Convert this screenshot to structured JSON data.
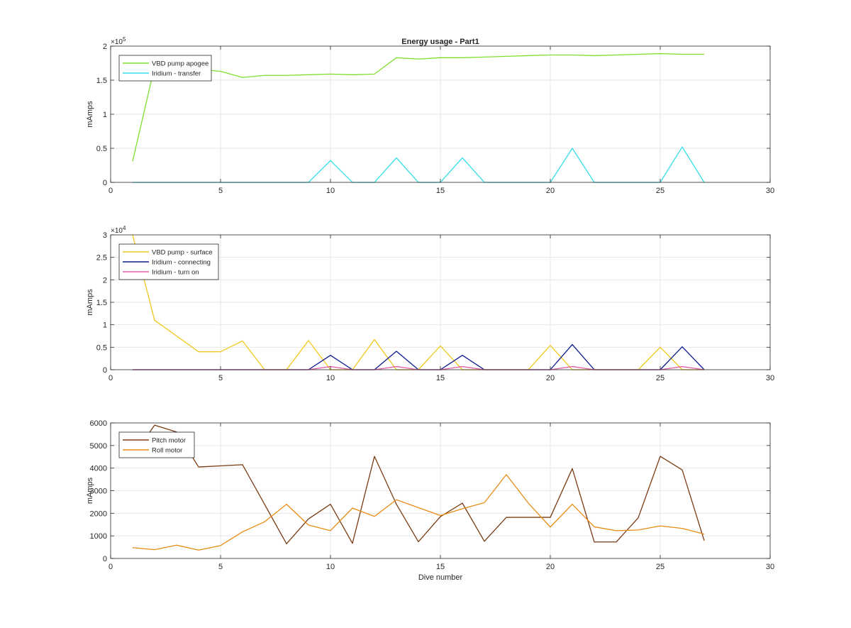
{
  "chart_data": [
    {
      "type": "line",
      "title": "Energy usage - Part1",
      "xlabel": "",
      "ylabel": "mAmps",
      "xlim": [
        0,
        30
      ],
      "ylim": [
        0,
        200000
      ],
      "x_ticks": [
        0,
        5,
        10,
        15,
        20,
        25,
        30
      ],
      "y_ticks": [
        0,
        50000,
        100000,
        150000,
        200000
      ],
      "y_tick_labels": [
        "0",
        "0.5",
        "1",
        "1.5",
        "2"
      ],
      "y_multiplier": {
        "base": "×10",
        "exponent": "5"
      },
      "grid": true,
      "legend": "top-left",
      "x": [
        1,
        2,
        3,
        4,
        5,
        6,
        7,
        8,
        9,
        10,
        11,
        12,
        13,
        14,
        15,
        16,
        17,
        18,
        19,
        20,
        21,
        22,
        23,
        24,
        25,
        26,
        27
      ],
      "series": [
        {
          "name": "VBD pump apogee",
          "color": "#7fdf2e",
          "values": [
            31000,
            170000,
            168000,
            166000,
            163000,
            154000,
            157000,
            157000,
            158000,
            159000,
            158000,
            159000,
            183000,
            181000,
            183000,
            183000,
            184000,
            185000,
            186000,
            187000,
            187000,
            186000,
            187000,
            188000,
            189000,
            188000,
            188000
          ]
        },
        {
          "name": "Iridium - transfer",
          "color": "#33dde8",
          "values": [
            0,
            0,
            0,
            0,
            0,
            0,
            0,
            0,
            0,
            32000,
            0,
            0,
            36000,
            0,
            0,
            36000,
            0,
            0,
            0,
            0,
            50000,
            0,
            0,
            0,
            0,
            52000,
            0
          ]
        }
      ]
    },
    {
      "type": "line",
      "title": "",
      "xlabel": "",
      "ylabel": "mAmps",
      "xlim": [
        0,
        30
      ],
      "ylim": [
        0,
        30000
      ],
      "x_ticks": [
        0,
        5,
        10,
        15,
        20,
        25,
        30
      ],
      "y_ticks": [
        0,
        5000,
        10000,
        15000,
        20000,
        25000,
        30000
      ],
      "y_tick_labels": [
        "0",
        "0.5",
        "1",
        "1.5",
        "2",
        "2.5",
        "3"
      ],
      "y_multiplier": {
        "base": "×10",
        "exponent": "4"
      },
      "grid": true,
      "legend": "top-left",
      "x": [
        1,
        2,
        3,
        4,
        5,
        6,
        7,
        8,
        9,
        10,
        11,
        12,
        13,
        14,
        15,
        16,
        17,
        18,
        19,
        20,
        21,
        22,
        23,
        24,
        25,
        26,
        27
      ],
      "series": [
        {
          "name": "VBD pump - surface",
          "color": "#efc81e",
          "values": [
            30000,
            11000,
            7500,
            4000,
            4000,
            6400,
            0,
            0,
            6500,
            0,
            0,
            6700,
            0,
            0,
            5300,
            0,
            0,
            0,
            0,
            5400,
            0,
            0,
            0,
            0,
            5000,
            0,
            0
          ]
        },
        {
          "name": "Iridium - connecting",
          "color": "#0b1a8c",
          "values": [
            0,
            0,
            0,
            0,
            0,
            0,
            0,
            0,
            0,
            3200,
            0,
            0,
            4100,
            0,
            0,
            3200,
            0,
            0,
            0,
            0,
            5600,
            0,
            0,
            0,
            0,
            5100,
            0
          ]
        },
        {
          "name": "Iridium - turn on",
          "color": "#e45ea7",
          "values": [
            0,
            0,
            0,
            0,
            0,
            0,
            0,
            0,
            0,
            700,
            0,
            0,
            700,
            0,
            0,
            700,
            0,
            0,
            0,
            0,
            700,
            0,
            0,
            0,
            0,
            700,
            0
          ]
        }
      ]
    },
    {
      "type": "line",
      "title": "",
      "xlabel": "Dive number",
      "ylabel": "mAmps",
      "xlim": [
        0,
        30
      ],
      "ylim": [
        0,
        6000
      ],
      "x_ticks": [
        0,
        5,
        10,
        15,
        20,
        25,
        30
      ],
      "y_ticks": [
        0,
        1000,
        2000,
        3000,
        4000,
        5000,
        6000
      ],
      "y_tick_labels": [
        "0",
        "1000",
        "2000",
        "3000",
        "4000",
        "5000",
        "6000"
      ],
      "grid": true,
      "legend": "top-left",
      "x": [
        1,
        2,
        3,
        4,
        5,
        6,
        7,
        8,
        9,
        10,
        11,
        12,
        13,
        14,
        15,
        16,
        17,
        18,
        19,
        20,
        21,
        22,
        23,
        24,
        25,
        26,
        27
      ],
      "series": [
        {
          "name": "Pitch motor",
          "color": "#7a3b12",
          "values": [
            4500,
            5900,
            5600,
            4050,
            4100,
            4150,
            2400,
            650,
            1750,
            2400,
            670,
            4520,
            2400,
            740,
            1850,
            2450,
            760,
            1820,
            1820,
            1820,
            3980,
            730,
            730,
            1800,
            4520,
            3920,
            790
          ]
        },
        {
          "name": "Roll motor",
          "color": "#e88b14",
          "values": [
            480,
            390,
            590,
            370,
            570,
            1180,
            1620,
            2400,
            1480,
            1230,
            2230,
            1860,
            2600,
            2250,
            1900,
            2200,
            2470,
            3710,
            2450,
            1390,
            2400,
            1400,
            1230,
            1260,
            1440,
            1330,
            1080
          ]
        }
      ]
    }
  ]
}
